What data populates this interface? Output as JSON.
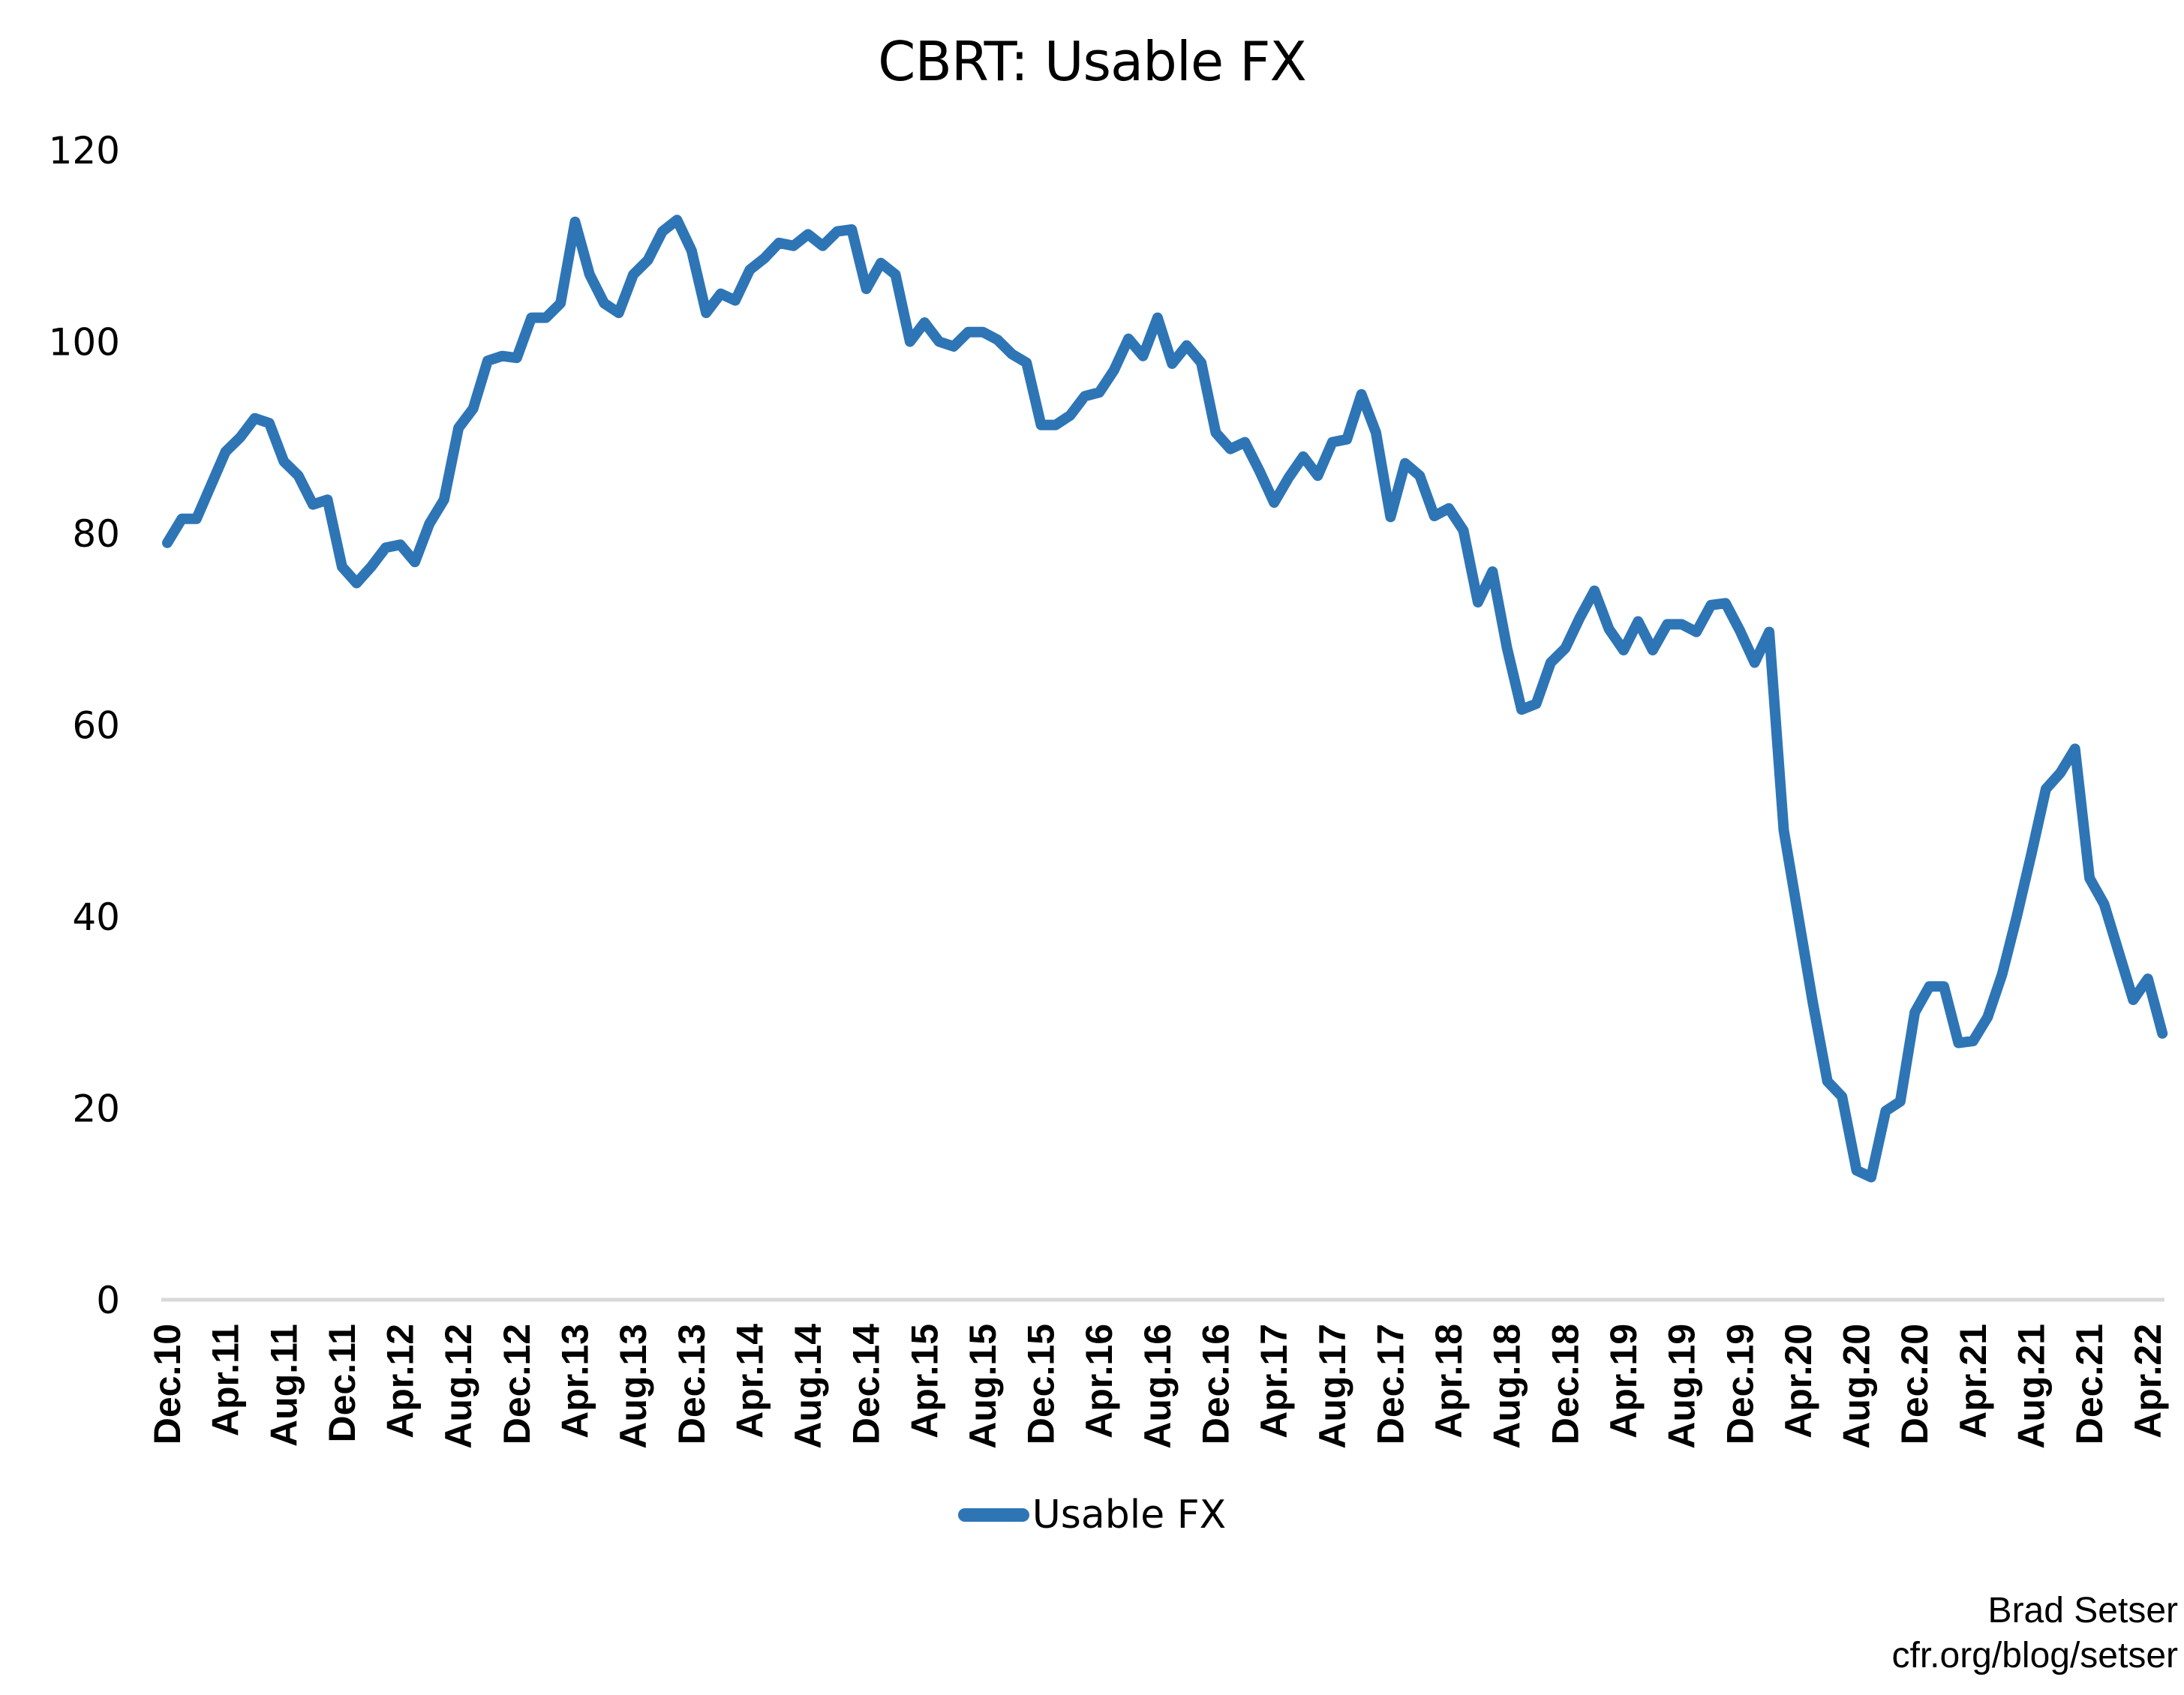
{
  "chart_data": {
    "type": "line",
    "title": "CBRT: Usable FX",
    "xlabel": "",
    "ylabel": "",
    "ylim": [
      0,
      120
    ],
    "yticks": [
      0,
      20,
      40,
      60,
      80,
      100,
      120
    ],
    "grid": false,
    "legend_position": "bottom",
    "x_tick_labels": [
      "Dec.10",
      "Apr.11",
      "Aug.11",
      "Dec.11",
      "Apr.12",
      "Aug.12",
      "Dec.12",
      "Apr.13",
      "Aug.13",
      "Dec.13",
      "Apr.14",
      "Aug.14",
      "Dec.14",
      "Apr.15",
      "Aug.15",
      "Dec.15",
      "Apr.16",
      "Aug.16",
      "Dec.16",
      "Apr.17",
      "Aug.17",
      "Dec.17",
      "Apr.18",
      "Aug.18",
      "Dec.18",
      "Apr.19",
      "Aug.19",
      "Dec.19",
      "Apr.20",
      "Aug.20",
      "Dec.20",
      "Apr.21",
      "Aug.21",
      "Dec.21",
      "Apr.22"
    ],
    "x_start": "Dec.10",
    "x_end": "May.22",
    "x_frequency": "monthly",
    "series": [
      {
        "name": "Usable FX",
        "color": "#2E75B6",
        "values": [
          79,
          81.5,
          81.5,
          85,
          88.5,
          90,
          92,
          91.5,
          87.5,
          86,
          83,
          83.5,
          76.5,
          74.8,
          76.5,
          78.5,
          78.8,
          77,
          81,
          83.5,
          91,
          93,
          98,
          98.5,
          98.3,
          102.5,
          102.5,
          104,
          112.5,
          107,
          104,
          103,
          107,
          108.5,
          111.5,
          112.7,
          109.5,
          103,
          105,
          104.3,
          107.5,
          108.7,
          110.3,
          110,
          111.2,
          110,
          111.5,
          111.7,
          105.5,
          108.2,
          107,
          100,
          102,
          100,
          99.5,
          101,
          101,
          100.2,
          98.7,
          97.8,
          91.3,
          91.3,
          92.3,
          94.3,
          94.7,
          97,
          100.3,
          98.5,
          102.5,
          97.7,
          99.6,
          97.8,
          90.5,
          88.8,
          89.5,
          86.5,
          83.2,
          85.8,
          88,
          86,
          89.5,
          89.8,
          94.5,
          90.5,
          81.7,
          87.3,
          86,
          81.8,
          82.6,
          80.3,
          72.8,
          76,
          68,
          61.6,
          62.2,
          66.5,
          68,
          71.2,
          74,
          70,
          67.8,
          70.8,
          67.8,
          70.5,
          70.5,
          69.7,
          72.5,
          72.7,
          69.8,
          66.5,
          69.7,
          49,
          40,
          31,
          22.8,
          21.2,
          13.5,
          12.8,
          19.7,
          20.7,
          30,
          32.7,
          32.7,
          26.8,
          27,
          29.5,
          34,
          40,
          46.5,
          53.3,
          55,
          57.5,
          44,
          41.3,
          36.3,
          31.3,
          33.5,
          27.8
        ]
      }
    ]
  },
  "legend": {
    "label": "Usable FX",
    "color": "#2E75B6"
  },
  "attribution": {
    "author": "Brad Setser",
    "url_text": "cfr.org/blog/setser"
  },
  "colors": {
    "axis": "#D9D9D9",
    "line": "#2E75B6",
    "text": "#000000"
  }
}
